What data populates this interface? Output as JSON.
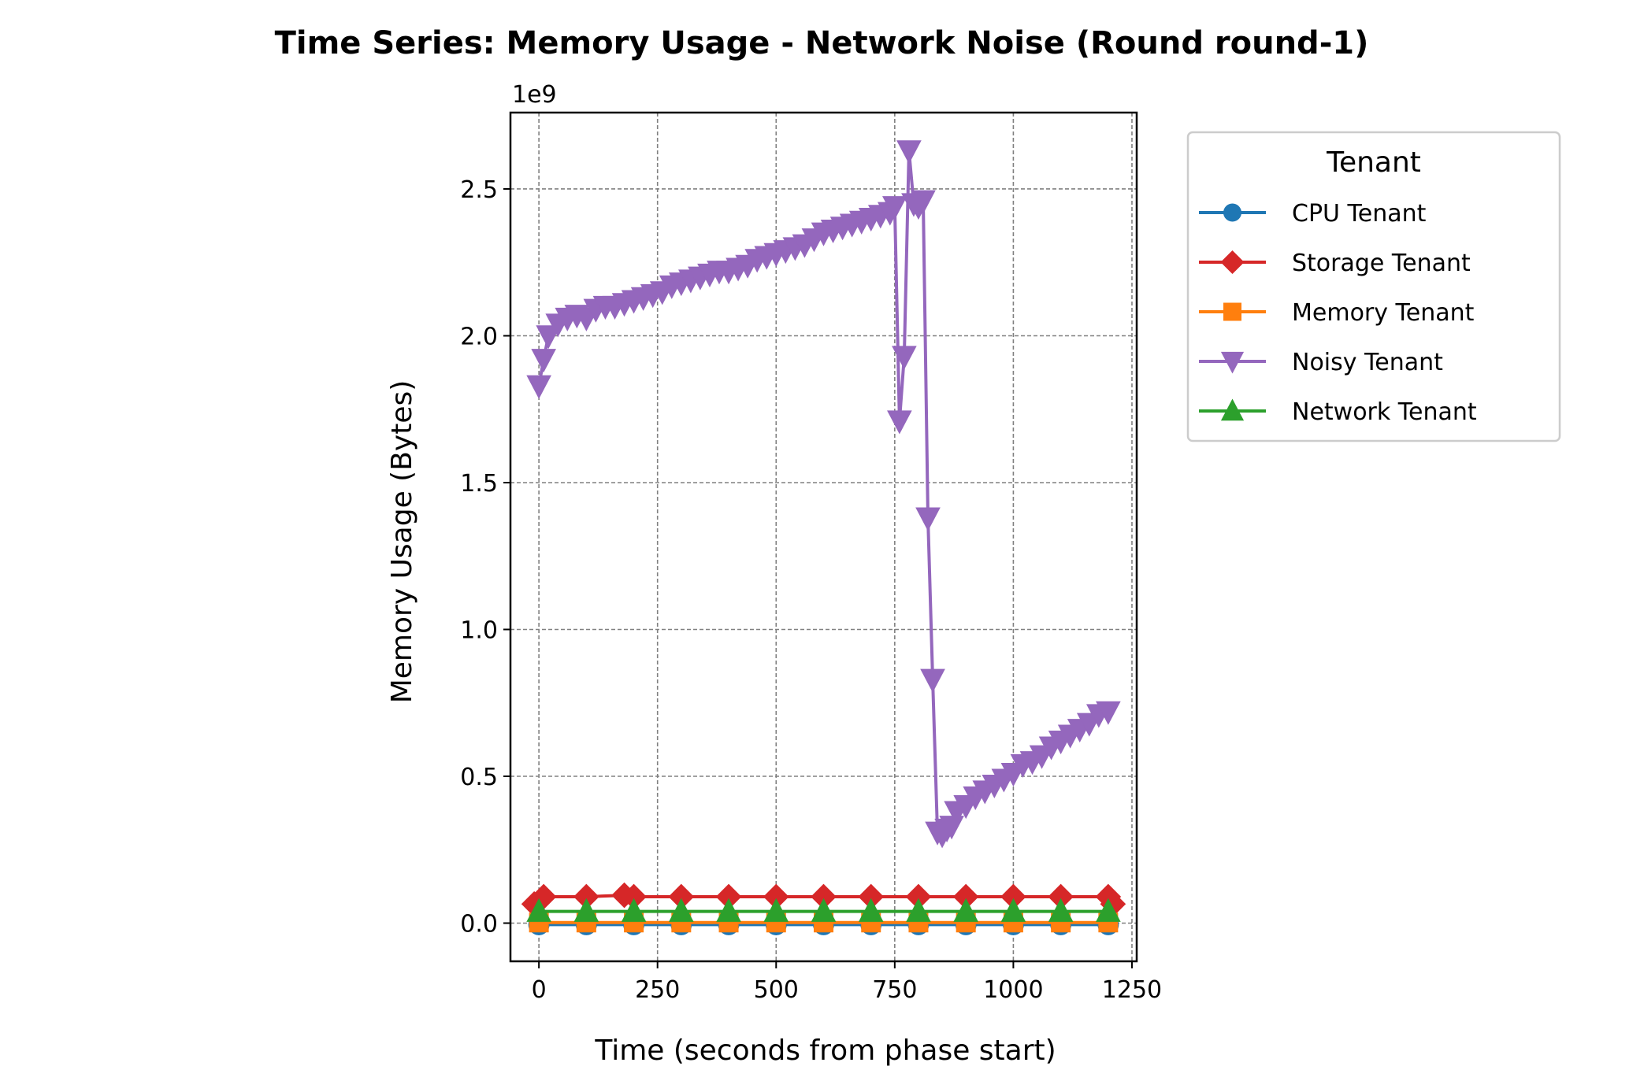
{
  "chart_data": {
    "type": "line",
    "title": "Time Series: Memory Usage - Network Noise (Round round-1)",
    "xlabel": "Time (seconds from phase start)",
    "ylabel": "Memory Usage (Bytes)",
    "y_offset_label": "1e9",
    "xlim": [
      -60,
      1260
    ],
    "ylim": [
      -0.13,
      2.76
    ],
    "y_scale_factor": 1000000000,
    "xticks": [
      0,
      250,
      500,
      750,
      1000,
      1250
    ],
    "yticks": [
      0.0,
      0.5,
      1.0,
      1.5,
      2.0,
      2.5
    ],
    "ytick_labels": [
      "0.0",
      "0.5",
      "1.0",
      "1.5",
      "2.0",
      "2.5"
    ],
    "grid": true,
    "legend": {
      "title": "Tenant",
      "placement": "outside-top-right"
    },
    "series": [
      {
        "name": "CPU Tenant",
        "color": "#1f77b4",
        "marker": "circle",
        "x": [
          0,
          100,
          200,
          300,
          400,
          500,
          600,
          700,
          800,
          900,
          1000,
          1100,
          1200
        ],
        "values": [
          -0.005,
          -0.005,
          -0.005,
          -0.005,
          -0.005,
          -0.005,
          -0.005,
          -0.005,
          -0.005,
          -0.005,
          -0.005,
          -0.005,
          -0.005
        ]
      },
      {
        "name": "Storage Tenant",
        "color": "#d62728",
        "marker": "diamond",
        "x": [
          -10,
          10,
          100,
          180,
          200,
          300,
          400,
          500,
          600,
          700,
          800,
          900,
          1000,
          1100,
          1200,
          1210
        ],
        "values": [
          0.065,
          0.09,
          0.09,
          0.095,
          0.09,
          0.09,
          0.09,
          0.09,
          0.09,
          0.09,
          0.09,
          0.09,
          0.09,
          0.09,
          0.09,
          0.065
        ]
      },
      {
        "name": "Memory Tenant",
        "color": "#ff7f0e",
        "marker": "square",
        "x": [
          0,
          100,
          200,
          300,
          400,
          500,
          600,
          700,
          800,
          900,
          1000,
          1100,
          1200
        ],
        "values": [
          0.002,
          0.002,
          0.002,
          0.002,
          0.002,
          0.002,
          0.002,
          0.002,
          0.002,
          0.002,
          0.002,
          0.002,
          0.002
        ]
      },
      {
        "name": "Noisy Tenant",
        "color": "#9467bd",
        "marker": "triangle-down",
        "x": [
          0,
          10,
          20,
          40,
          60,
          80,
          100,
          120,
          140,
          160,
          180,
          200,
          220,
          240,
          260,
          280,
          300,
          320,
          340,
          360,
          380,
          400,
          420,
          440,
          460,
          480,
          500,
          520,
          540,
          560,
          580,
          600,
          620,
          640,
          660,
          680,
          700,
          720,
          740,
          750,
          760,
          770,
          780,
          790,
          800,
          810,
          820,
          830,
          840,
          850,
          860,
          870,
          880,
          900,
          920,
          940,
          960,
          980,
          1000,
          1020,
          1040,
          1060,
          1080,
          1100,
          1120,
          1140,
          1160,
          1180,
          1200
        ],
        "values": [
          1.83,
          1.92,
          2.0,
          2.04,
          2.06,
          2.07,
          2.06,
          2.09,
          2.1,
          2.1,
          2.11,
          2.12,
          2.13,
          2.14,
          2.15,
          2.17,
          2.18,
          2.19,
          2.2,
          2.21,
          2.22,
          2.22,
          2.23,
          2.24,
          2.26,
          2.27,
          2.28,
          2.29,
          2.3,
          2.31,
          2.33,
          2.35,
          2.36,
          2.37,
          2.38,
          2.39,
          2.4,
          2.41,
          2.42,
          2.44,
          1.71,
          1.93,
          2.63,
          2.45,
          2.44,
          2.46,
          1.38,
          0.83,
          0.31,
          0.3,
          0.32,
          0.33,
          0.38,
          0.4,
          0.43,
          0.45,
          0.47,
          0.49,
          0.51,
          0.54,
          0.55,
          0.57,
          0.6,
          0.62,
          0.64,
          0.66,
          0.68,
          0.71,
          0.72
        ]
      },
      {
        "name": "Network Tenant",
        "color": "#2ca02c",
        "marker": "triangle-up",
        "x": [
          0,
          100,
          200,
          300,
          400,
          500,
          600,
          700,
          800,
          900,
          1000,
          1100,
          1200
        ],
        "values": [
          0.04,
          0.04,
          0.04,
          0.04,
          0.04,
          0.04,
          0.04,
          0.04,
          0.04,
          0.04,
          0.04,
          0.04,
          0.04
        ]
      }
    ]
  }
}
